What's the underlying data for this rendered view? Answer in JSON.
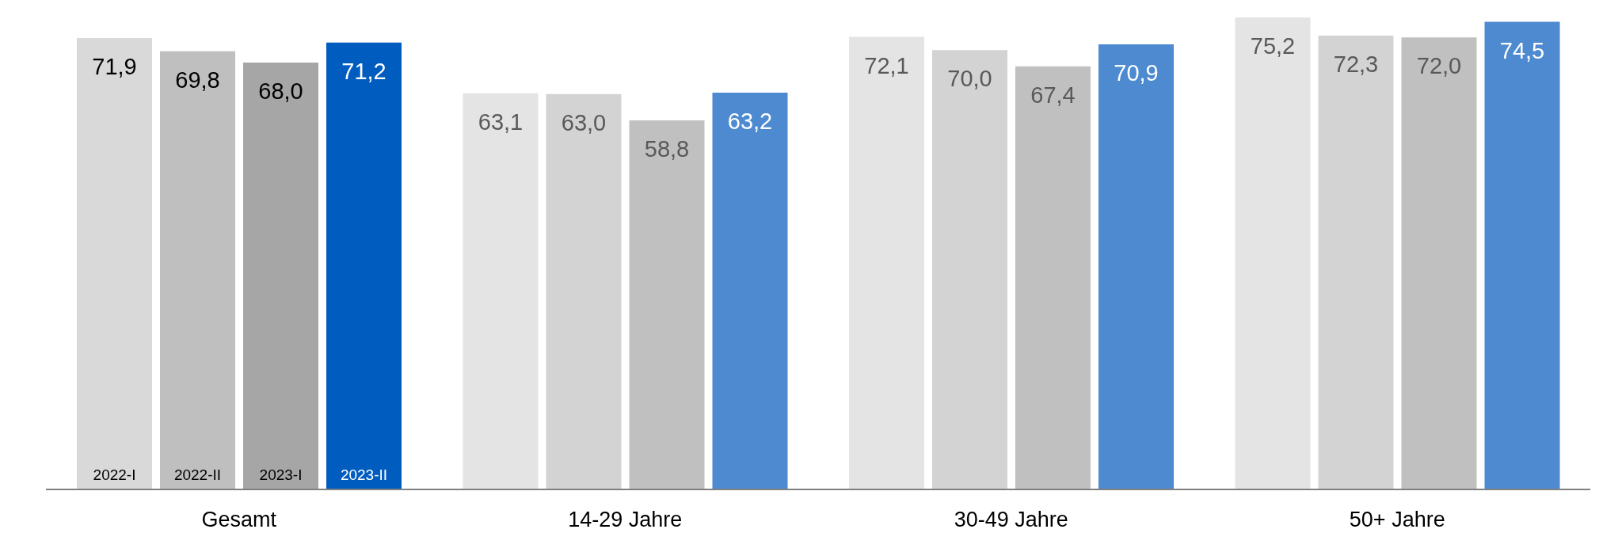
{
  "chart_data": {
    "type": "bar",
    "categories": [
      "Gesamt",
      "14-29 Jahre",
      "30-49 Jahre",
      "50+ Jahre"
    ],
    "series": [
      {
        "name": "2022-I",
        "colors": [
          "#d9d9d9",
          "#e4e4e4",
          "#e4e4e4",
          "#e4e4e4"
        ],
        "values": [
          71.9,
          63.1,
          72.1,
          75.2
        ],
        "value_labels": [
          "71,9",
          "63,1",
          "72,1",
          "75,2"
        ]
      },
      {
        "name": "2022-II",
        "colors": [
          "#bfbfbf",
          "#d3d3d3",
          "#d3d3d3",
          "#d3d3d3"
        ],
        "values": [
          69.8,
          63.0,
          70.0,
          72.3
        ],
        "value_labels": [
          "69,8",
          "63,0",
          "70,0",
          "72,3"
        ]
      },
      {
        "name": "2023-I",
        "colors": [
          "#a6a6a6",
          "#c0c0c0",
          "#c0c0c0",
          "#c0c0c0"
        ],
        "values": [
          68.0,
          58.8,
          67.4,
          72.0
        ],
        "value_labels": [
          "68,0",
          "58,8",
          "67,4",
          "72,0"
        ]
      },
      {
        "name": "2023-II",
        "colors": [
          "#005cbf",
          "#4d8ad0",
          "#4d8ad0",
          "#4d8ad0"
        ],
        "values": [
          71.2,
          63.2,
          70.9,
          74.5
        ],
        "value_labels": [
          "71,2",
          "63,2",
          "70,9",
          "74,5"
        ]
      }
    ],
    "data_labels": true
  }
}
